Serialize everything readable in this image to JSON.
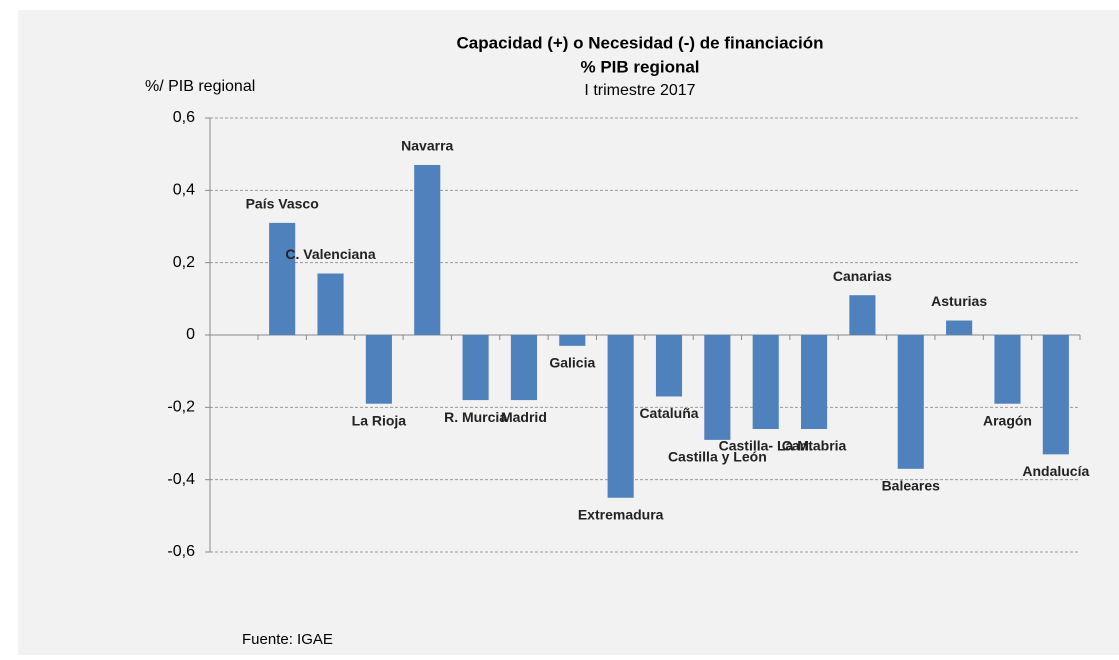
{
  "chart_data": {
    "type": "bar",
    "title": "Capacidad (+) o Necesidad (-) de financiación",
    "subtitle": "% PIB regional",
    "period": "I trimestre 2017",
    "y_label": "%/ PIB regional",
    "source": "Fuente: IGAE",
    "categories": [
      "País Vasco",
      "C. Valenciana",
      "La Rioja",
      "Navarra",
      "R. Murcia",
      "Madrid",
      "Galicia",
      "Extremadura",
      "Cataluña",
      "Castilla y León",
      "Castilla- La M.",
      "Cantabria",
      "Canarias",
      "Baleares",
      "Asturias",
      "Aragón",
      "Andalucía"
    ],
    "values": [
      0.31,
      0.17,
      -0.19,
      0.47,
      -0.18,
      -0.18,
      -0.03,
      -0.45,
      -0.17,
      -0.29,
      -0.26,
      -0.26,
      0.11,
      -0.37,
      0.04,
      -0.19,
      -0.33
    ],
    "color": "#4f81bd",
    "ylim": [
      -0.6,
      0.6
    ],
    "yticks": [
      {
        "value": -0.6,
        "label": "-0,6"
      },
      {
        "value": -0.4,
        "label": "-0,4"
      },
      {
        "value": -0.2,
        "label": "-0,2"
      },
      0,
      {
        "value": 0.2,
        "label": "0,2"
      },
      {
        "value": 0.4,
        "label": "0,4"
      },
      {
        "value": 0.6,
        "label": "0,6"
      }
    ],
    "grid": true
  }
}
